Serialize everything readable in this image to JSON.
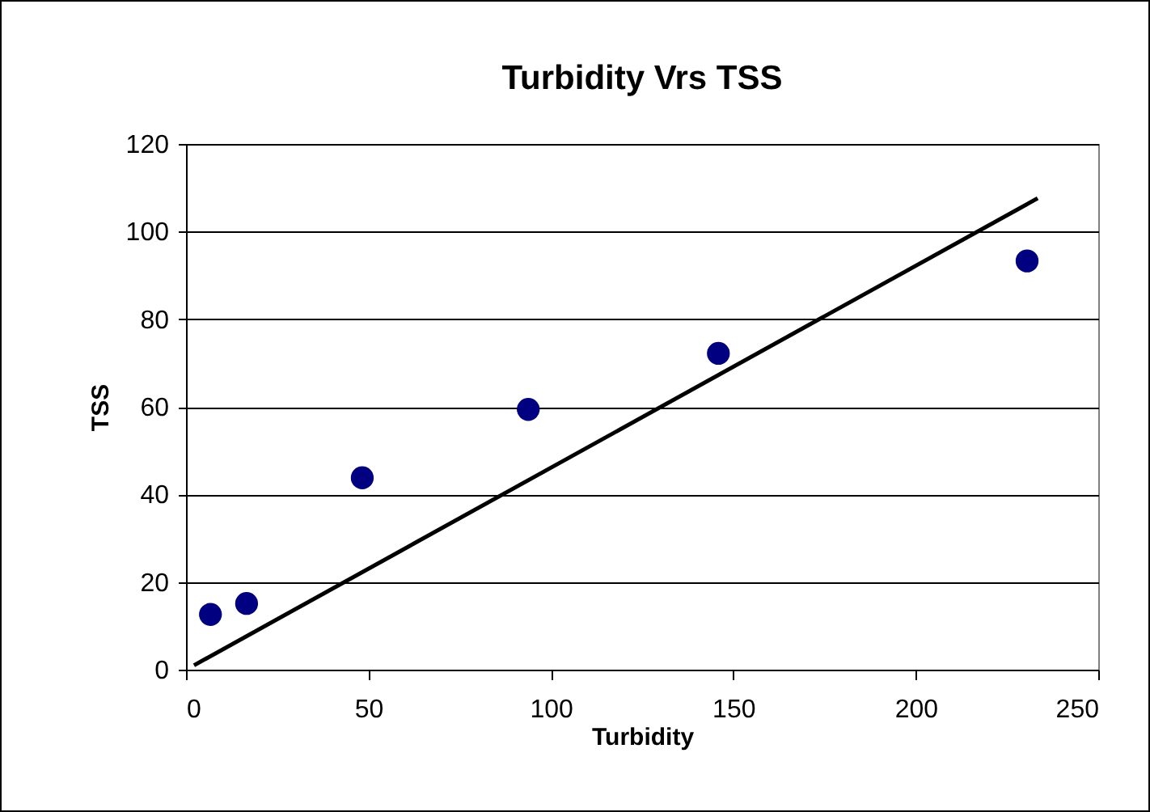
{
  "chart_data": {
    "type": "scatter",
    "title": "Turbidity Vrs TSS",
    "xlabel": "Turbidity",
    "ylabel": "TSS",
    "xlim": [
      0,
      250
    ],
    "xticks": [
      0,
      50,
      100,
      150,
      200,
      250
    ],
    "ylim": [
      0,
      120
    ],
    "yticks": [
      0,
      20,
      40,
      60,
      80,
      100,
      120
    ],
    "grid": "y",
    "series": [
      {
        "marker": "circle",
        "color": "#000080",
        "x": [
          6.7,
          16.6,
          48.3,
          93.8,
          145.9,
          230.5
        ],
        "values": [
          12.6,
          15.1,
          43.8,
          59.4,
          72.2,
          93.3
        ]
      },
      {
        "type": "line",
        "color": "#000000",
        "x": [
          2.2,
          233.4
        ],
        "values": [
          1.0,
          107.6
        ]
      }
    ]
  }
}
